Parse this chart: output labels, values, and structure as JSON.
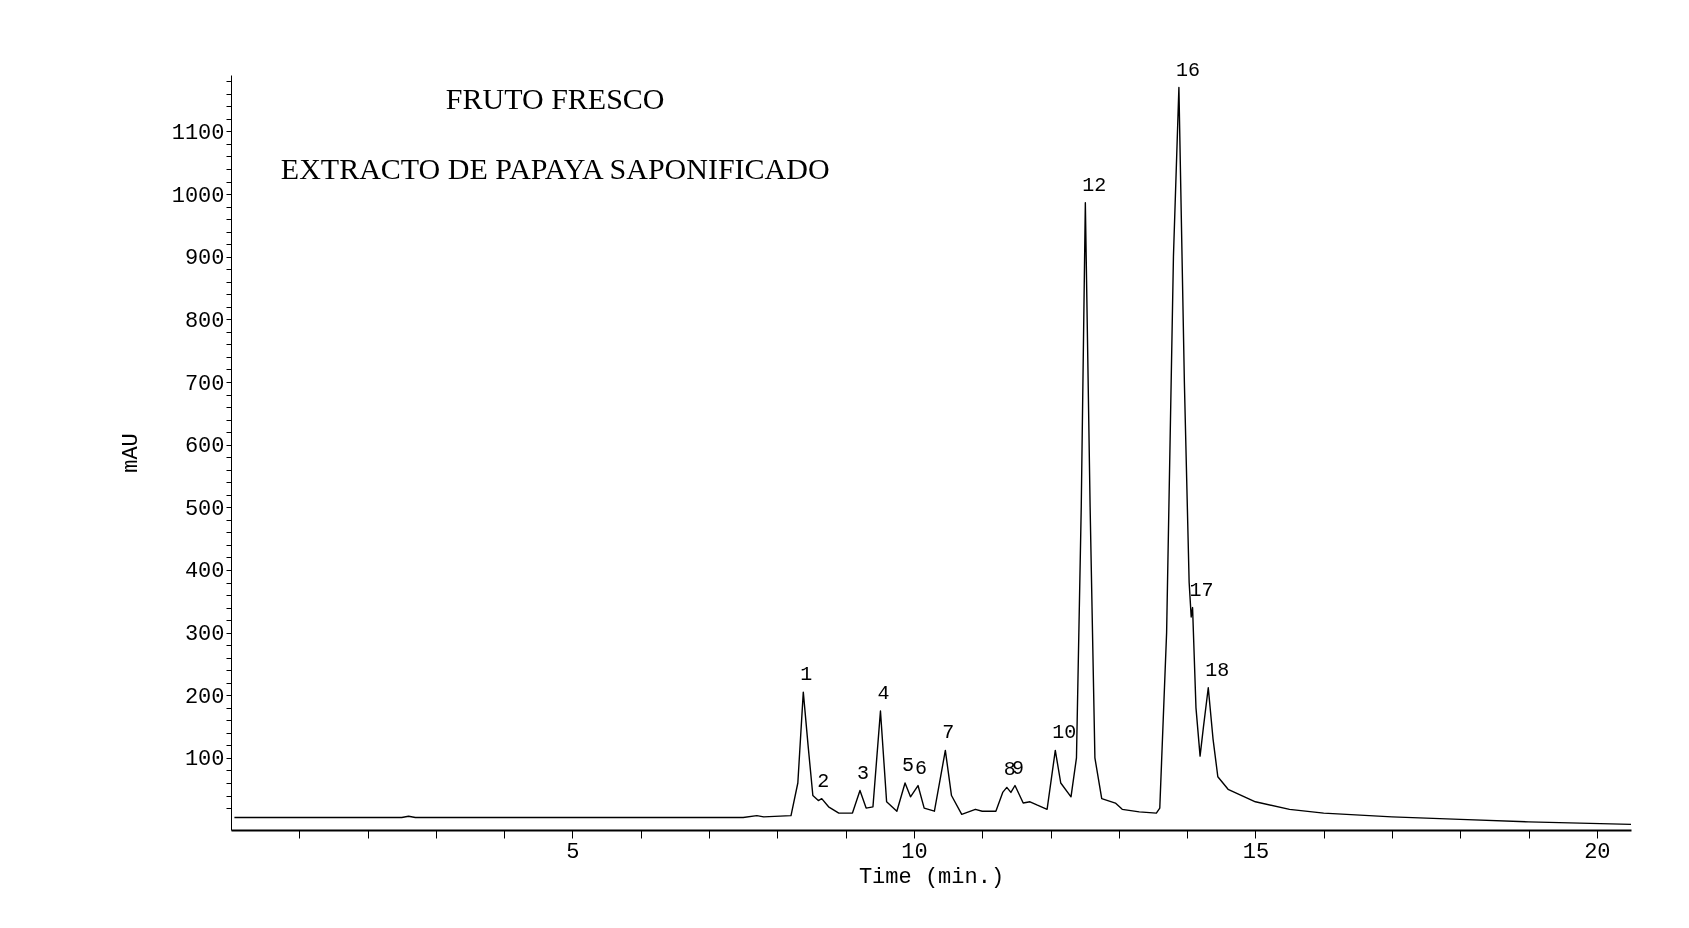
{
  "chart_data": {
    "type": "line",
    "title": "FRUTO FRESCO",
    "subtitle": "EXTRACTO DE  PAPAYA SAPONIFICADO",
    "xlabel": "Time (min.)",
    "ylabel": "mAU",
    "x": [
      0.05,
      2.5,
      2.6,
      2.7,
      7.5,
      7.7,
      7.8,
      8.2,
      8.3,
      8.38,
      8.45,
      8.52,
      8.6,
      8.65,
      8.75,
      8.9,
      9.1,
      9.21,
      9.3,
      9.4,
      9.51,
      9.6,
      9.75,
      9.87,
      9.95,
      10.06,
      10.15,
      10.3,
      10.46,
      10.55,
      10.7,
      10.9,
      11.0,
      11.2,
      11.3,
      11.36,
      11.42,
      11.48,
      11.6,
      11.7,
      11.8,
      11.95,
      12.07,
      12.15,
      12.3,
      12.38,
      12.45,
      12.51,
      12.58,
      12.65,
      12.75,
      12.95,
      13.05,
      13.3,
      13.55,
      13.6,
      13.7,
      13.8,
      13.88,
      13.96,
      14.03,
      14.06,
      14.08,
      14.13,
      14.19,
      14.24,
      14.31,
      14.38,
      14.45,
      14.6,
      15.0,
      15.5,
      16,
      17,
      18,
      19,
      20.5
    ],
    "series": [
      {
        "color": "#000000",
        "values": [
          5,
          5,
          7,
          5,
          5,
          8,
          6,
          8,
          60,
          205,
          120,
          40,
          32,
          35,
          22,
          12,
          12,
          48,
          20,
          22,
          175,
          30,
          15,
          60,
          38,
          56,
          20,
          15,
          112,
          40,
          10,
          18,
          15,
          15,
          45,
          53,
          45,
          56,
          28,
          30,
          25,
          18,
          112,
          60,
          38,
          100,
          500,
          986,
          500,
          100,
          35,
          28,
          18,
          14,
          12,
          20,
          300,
          900,
          1170,
          700,
          380,
          325,
          340,
          180,
          103,
          150,
          212,
          130,
          70,
          50,
          30,
          18,
          12,
          6,
          2,
          -2,
          -6
        ]
      }
    ],
    "annotations": [
      {
        "text": "1",
        "x": 8.38,
        "y": 205
      },
      {
        "text": "2",
        "x": 8.63,
        "y": 35
      },
      {
        "text": "3",
        "x": 9.21,
        "y": 48
      },
      {
        "text": "4",
        "x": 9.51,
        "y": 175
      },
      {
        "text": "5",
        "x": 9.87,
        "y": 60
      },
      {
        "text": "6",
        "x": 10.06,
        "y": 56
      },
      {
        "text": "7",
        "x": 10.46,
        "y": 112
      },
      {
        "text": "8",
        "x": 11.36,
        "y": 53
      },
      {
        "text": "9",
        "x": 11.48,
        "y": 56
      },
      {
        "text": "10",
        "x": 12.07,
        "y": 112
      },
      {
        "text": "12",
        "x": 12.51,
        "y": 986
      },
      {
        "text": "16",
        "x": 13.88,
        "y": 1170
      },
      {
        "text": "17",
        "x": 14.08,
        "y": 340
      },
      {
        "text": "18",
        "x": 14.31,
        "y": 212
      }
    ],
    "xlim": [
      0,
      20.5
    ],
    "ylim": [
      -15,
      1190
    ],
    "xticks": [
      {
        "value": 1,
        "label": null
      },
      {
        "value": 2,
        "label": null
      },
      {
        "value": 3,
        "label": null
      },
      {
        "value": 4,
        "label": null
      },
      5,
      {
        "value": 6,
        "label": null
      },
      {
        "value": 7,
        "label": null
      },
      {
        "value": 8,
        "label": null
      },
      {
        "value": 9,
        "label": null
      },
      10,
      {
        "value": 11,
        "label": null
      },
      {
        "value": 12,
        "label": null
      },
      {
        "value": 13,
        "label": null
      },
      {
        "value": 14,
        "label": null
      },
      15,
      {
        "value": 16,
        "label": null
      },
      {
        "value": 17,
        "label": null
      },
      {
        "value": 18,
        "label": null
      },
      {
        "value": 19,
        "label": null
      },
      20
    ],
    "yticks": [
      {
        "value": 20,
        "label": null
      },
      {
        "value": 40,
        "label": null
      },
      {
        "value": 60,
        "label": null
      },
      {
        "value": 80,
        "label": null
      },
      100,
      {
        "value": 120,
        "label": null
      },
      {
        "value": 140,
        "label": null
      },
      {
        "value": 160,
        "label": null
      },
      {
        "value": 180,
        "label": null
      },
      200,
      {
        "value": 220,
        "label": null
      },
      {
        "value": 240,
        "label": null
      },
      {
        "value": 260,
        "label": null
      },
      {
        "value": 280,
        "label": null
      },
      300,
      {
        "value": 320,
        "label": null
      },
      {
        "value": 340,
        "label": null
      },
      {
        "value": 360,
        "label": null
      },
      {
        "value": 380,
        "label": null
      },
      400,
      {
        "value": 420,
        "label": null
      },
      {
        "value": 440,
        "label": null
      },
      {
        "value": 460,
        "label": null
      },
      {
        "value": 480,
        "label": null
      },
      500,
      {
        "value": 520,
        "label": null
      },
      {
        "value": 540,
        "label": null
      },
      {
        "value": 560,
        "label": null
      },
      {
        "value": 580,
        "label": null
      },
      600,
      {
        "value": 620,
        "label": null
      },
      {
        "value": 640,
        "label": null
      },
      {
        "value": 660,
        "label": null
      },
      {
        "value": 680,
        "label": null
      },
      700,
      {
        "value": 720,
        "label": null
      },
      {
        "value": 740,
        "label": null
      },
      {
        "value": 760,
        "label": null
      },
      {
        "value": 780,
        "label": null
      },
      800,
      {
        "value": 820,
        "label": null
      },
      {
        "value": 840,
        "label": null
      },
      {
        "value": 860,
        "label": null
      },
      {
        "value": 880,
        "label": null
      },
      900,
      {
        "value": 920,
        "label": null
      },
      {
        "value": 940,
        "label": null
      },
      {
        "value": 960,
        "label": null
      },
      {
        "value": 980,
        "label": null
      },
      1000,
      {
        "value": 1020,
        "label": null
      },
      {
        "value": 1040,
        "label": null
      },
      {
        "value": 1060,
        "label": null
      },
      {
        "value": 1080,
        "label": null
      },
      1100,
      {
        "value": 1120,
        "label": null
      },
      {
        "value": 1140,
        "label": null
      },
      {
        "value": 1160,
        "label": null
      },
      {
        "value": 1180,
        "label": null
      }
    ],
    "line_style": "solid"
  }
}
